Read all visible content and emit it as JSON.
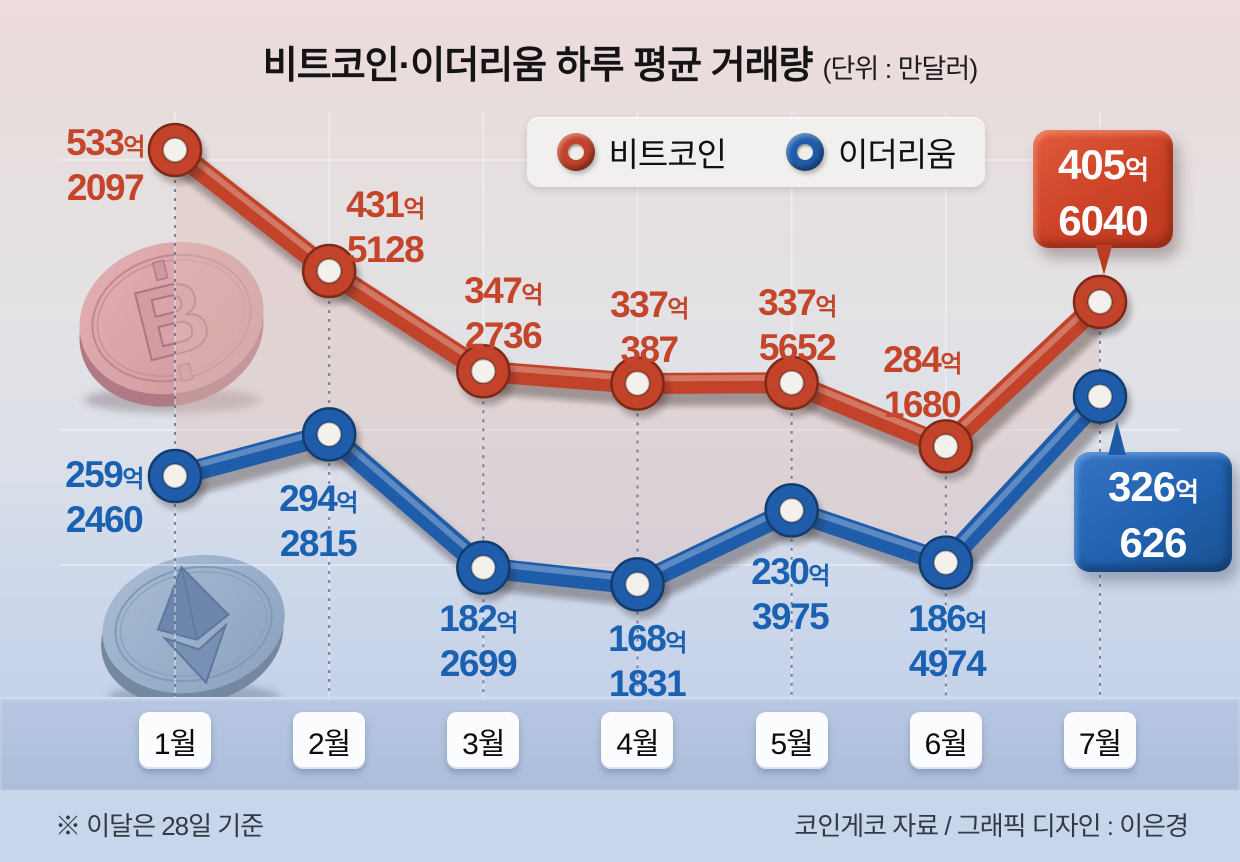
{
  "title": {
    "text": "비트코인·이더리움 하루 평균 거래량",
    "unit": "(단위 : 만달러)"
  },
  "legend": {
    "items": [
      {
        "label": "비트코인",
        "color": "#c2432a"
      },
      {
        "label": "이더리움",
        "color": "#1f5dab"
      }
    ]
  },
  "chart_data": {
    "type": "line",
    "title": "비트코인·이더리움 하루 평균 거래량",
    "unit": "만달러",
    "categories": [
      "1월",
      "2월",
      "3월",
      "4월",
      "5월",
      "6월",
      "7월"
    ],
    "series": [
      {
        "name": "비트코인",
        "color": "#c2432a",
        "values": [
          5332097,
          4315128,
          3472736,
          3370387,
          3375652,
          2841680,
          4056040
        ],
        "labels": [
          {
            "main": "533",
            "suffix": "억",
            "sub": "2097"
          },
          {
            "main": "431",
            "suffix": "억",
            "sub": "5128"
          },
          {
            "main": "347",
            "suffix": "억",
            "sub": "2736"
          },
          {
            "main": "337",
            "suffix": "억",
            "sub": "387"
          },
          {
            "main": "337",
            "suffix": "억",
            "sub": "5652"
          },
          {
            "main": "284",
            "suffix": "억",
            "sub": "1680"
          },
          {
            "main": "405",
            "suffix": "억",
            "sub": "6040"
          }
        ]
      },
      {
        "name": "이더리움",
        "color": "#1f5dab",
        "values": [
          2592460,
          2942815,
          1822699,
          1681831,
          2303975,
          1864974,
          3260626
        ],
        "labels": [
          {
            "main": "259",
            "suffix": "억",
            "sub": "2460"
          },
          {
            "main": "294",
            "suffix": "억",
            "sub": "2815"
          },
          {
            "main": "182",
            "suffix": "억",
            "sub": "2699"
          },
          {
            "main": "168",
            "suffix": "억",
            "sub": "1831"
          },
          {
            "main": "230",
            "suffix": "억",
            "sub": "3975"
          },
          {
            "main": "186",
            "suffix": "억",
            "sub": "4974"
          },
          {
            "main": "326",
            "suffix": "억",
            "sub": "626"
          }
        ]
      }
    ],
    "callouts": {
      "bitcoin": {
        "main": "405",
        "suffix": "억",
        "sub": "6040"
      },
      "ethereum": {
        "main": "326",
        "suffix": "억",
        "sub": "626"
      }
    },
    "legend_position": "top",
    "grid": "dashed vertical guides per month",
    "marker": "donut"
  },
  "footer": {
    "note": "※ 이달은 28일 기준",
    "credit": "코인게코 자료 / 그래픽 디자인 : 이은경"
  }
}
